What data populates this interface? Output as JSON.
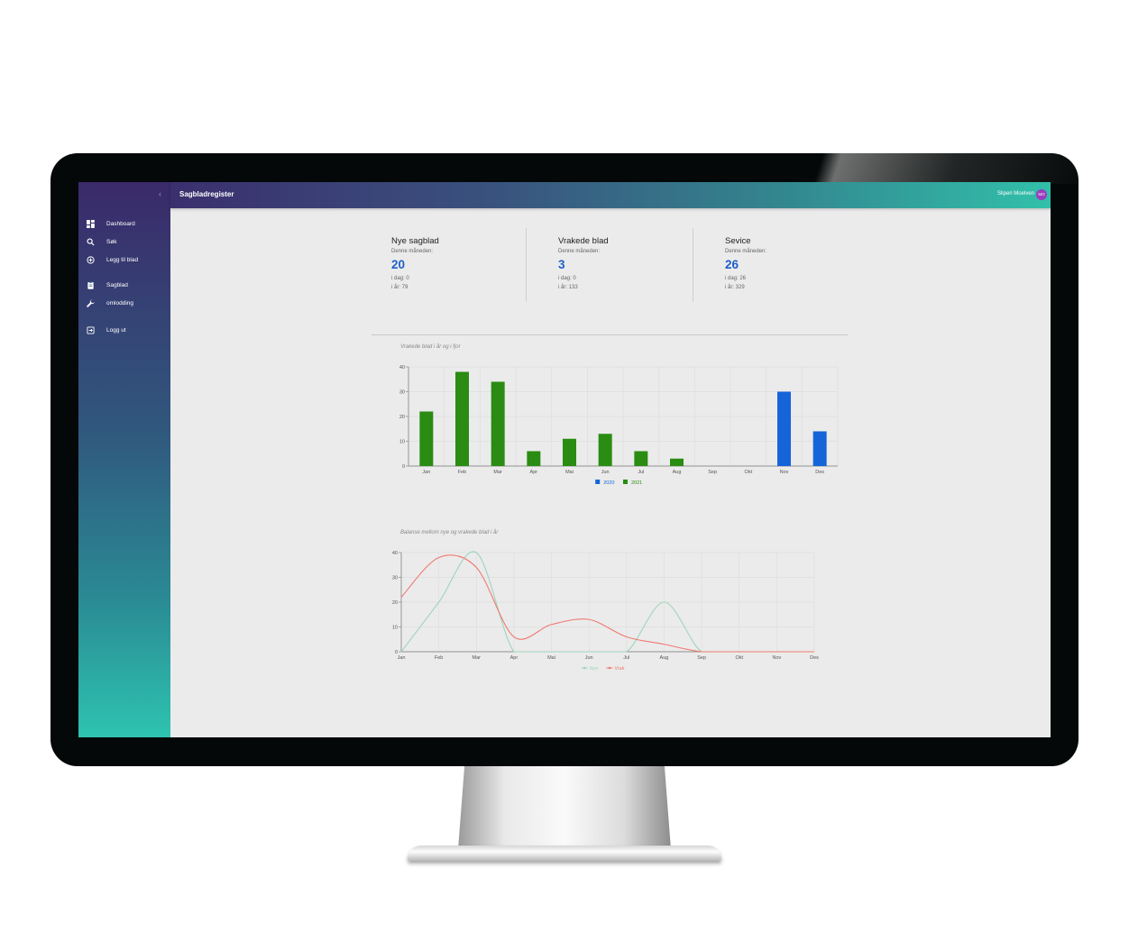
{
  "app": {
    "title": "Sagbladregister",
    "collapse_icon": "chevron-left-icon"
  },
  "user": {
    "name": "Sliperi Moelven",
    "initials": "MO",
    "avatar_color": "#9b3cc0"
  },
  "sidebar": {
    "items": [
      {
        "label": "Dashboard",
        "icon": "dashboard-icon"
      },
      {
        "label": "Søk",
        "icon": "search-icon"
      },
      {
        "label": "Legg til blad",
        "icon": "add-circle-icon"
      },
      {
        "label": "Sagblad",
        "icon": "clipboard-icon"
      },
      {
        "label": "omlodding",
        "icon": "wrench-icon"
      },
      {
        "label": "Logg ut",
        "icon": "logout-icon"
      }
    ]
  },
  "stats": [
    {
      "title": "Nye sagblad",
      "subtitle": "Denne måneden:",
      "value": "20",
      "today": "i dag: 0",
      "year": "i år: 79"
    },
    {
      "title": "Vrakede blad",
      "subtitle": "Denne måneden:",
      "value": "3",
      "today": "i dag: 0",
      "year": "i år: 133"
    },
    {
      "title": "Sevice",
      "subtitle": "Denne måneden:",
      "value": "26",
      "today": "i dag: 26",
      "year": "i år: 329"
    }
  ],
  "colors": {
    "accent": "#1e5fc8",
    "green": "#2a8c12",
    "blue": "#1565d8",
    "nye": "#9fd4bb",
    "vrak": "#ef7a72"
  },
  "chart_data": [
    {
      "type": "bar",
      "title": "Vrakede blad i år og i fjor",
      "categories": [
        "Jan",
        "Feb",
        "Mar",
        "Apr",
        "Mai",
        "Jun",
        "Jul",
        "Aug",
        "Sep",
        "Okt",
        "Nov",
        "Des"
      ],
      "series": [
        {
          "name": "2020",
          "color": "#1565d8",
          "values": [
            0,
            0,
            0,
            0,
            0,
            0,
            0,
            0,
            0,
            0,
            30,
            14
          ]
        },
        {
          "name": "2021",
          "color": "#2a8c12",
          "values": [
            22,
            38,
            34,
            6,
            11,
            13,
            6,
            3,
            0,
            0,
            0,
            0
          ]
        }
      ],
      "yticks": [
        0,
        10,
        20,
        30,
        40
      ],
      "ylim": [
        0,
        40
      ],
      "grid": true,
      "legend": "bottom-center"
    },
    {
      "type": "line",
      "title": "Balanse mellom nye og vrakede blad i år",
      "categories": [
        "Jan",
        "Feb",
        "Mar",
        "Apr",
        "Mai",
        "Jun",
        "Jul",
        "Aug",
        "Sep",
        "Okt",
        "Nov",
        "Des"
      ],
      "series": [
        {
          "name": "Nye",
          "color": "#9fd4bb",
          "values": [
            0,
            20,
            40,
            0,
            0,
            0,
            0,
            20,
            0,
            0,
            0,
            0
          ]
        },
        {
          "name": "Vrak",
          "color": "#ef7a72",
          "values": [
            22,
            38,
            34,
            6,
            11,
            13,
            6,
            3,
            0,
            0,
            0,
            0
          ]
        }
      ],
      "yticks": [
        0,
        10,
        20,
        30,
        40
      ],
      "ylim": [
        0,
        40
      ],
      "grid": true,
      "legend": "bottom-center"
    }
  ]
}
